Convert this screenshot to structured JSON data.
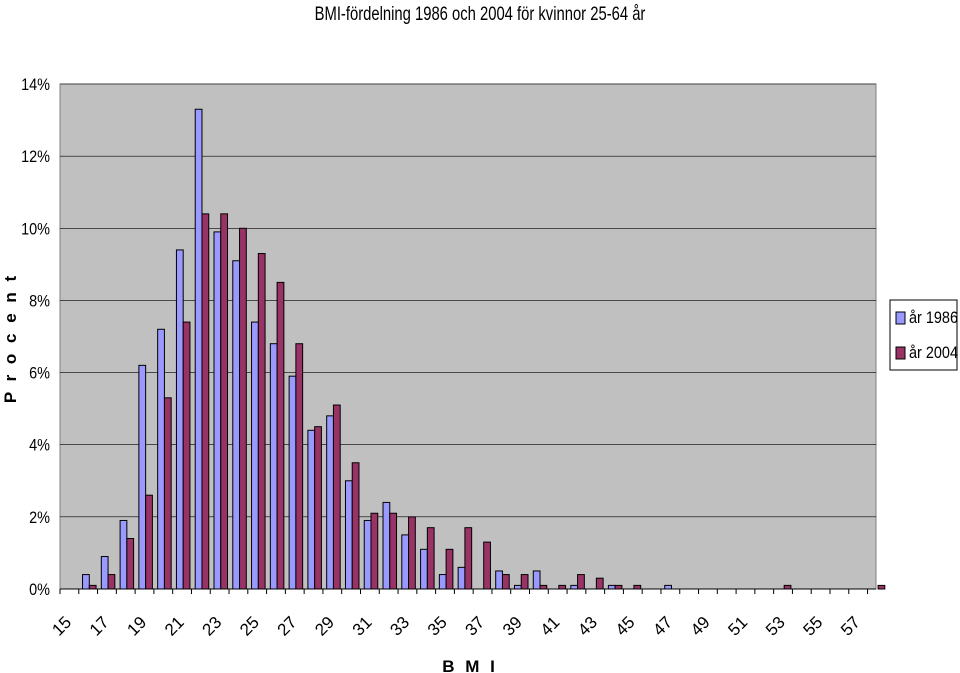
{
  "chart_data": {
    "type": "bar",
    "title": "BMI-fördelning 1986 och 2004 för kvinnor 25-64 år",
    "xlabel": "B M I",
    "ylabel": "P r o c e n t",
    "ylim": [
      0,
      0.14
    ],
    "yticks": [
      "0%",
      "2%",
      "4%",
      "6%",
      "8%",
      "10%",
      "12%",
      "14%"
    ],
    "grid": true,
    "legend_position": "right",
    "x_tick_labels": [
      "15",
      "17",
      "19",
      "21",
      "23",
      "25",
      "27",
      "29",
      "31",
      "33",
      "35",
      "37",
      "39",
      "41",
      "43",
      "45",
      "47",
      "49",
      "51",
      "53",
      "55",
      "57"
    ],
    "categories": [
      15,
      16,
      17,
      18,
      19,
      20,
      21,
      22,
      23,
      24,
      25,
      26,
      27,
      28,
      29,
      30,
      31,
      32,
      33,
      34,
      35,
      36,
      37,
      38,
      39,
      40,
      41,
      42,
      43,
      44,
      45,
      46,
      47,
      48,
      49,
      50,
      51,
      52,
      53,
      54,
      55,
      56,
      57,
      58
    ],
    "series": [
      {
        "name": "år 1986",
        "color": "#9999ff",
        "values": [
          0,
          0.004,
          0.009,
          0.019,
          0.062,
          0.072,
          0.094,
          0.133,
          0.099,
          0.091,
          0.074,
          0.068,
          0.059,
          0.044,
          0.048,
          0.03,
          0.019,
          0.024,
          0.015,
          0.011,
          0.004,
          0.006,
          0,
          0.005,
          0.001,
          0.005,
          0,
          0.001,
          0,
          0.001,
          0,
          0,
          0.001,
          0,
          0,
          0,
          0,
          0,
          0,
          0,
          0,
          0,
          0,
          0
        ]
      },
      {
        "name": "år 2004",
        "color": "#993366",
        "values": [
          0,
          0.001,
          0.004,
          0.014,
          0.026,
          0.053,
          0.074,
          0.104,
          0.104,
          0.1,
          0.093,
          0.085,
          0.068,
          0.045,
          0.051,
          0.035,
          0.021,
          0.021,
          0.02,
          0.017,
          0.011,
          0.017,
          0.013,
          0.004,
          0.004,
          0.001,
          0.001,
          0.004,
          0.003,
          0.001,
          0.001,
          0,
          0,
          0,
          0,
          0,
          0,
          0,
          0.001,
          0,
          0,
          0,
          0,
          0.001
        ]
      }
    ]
  }
}
